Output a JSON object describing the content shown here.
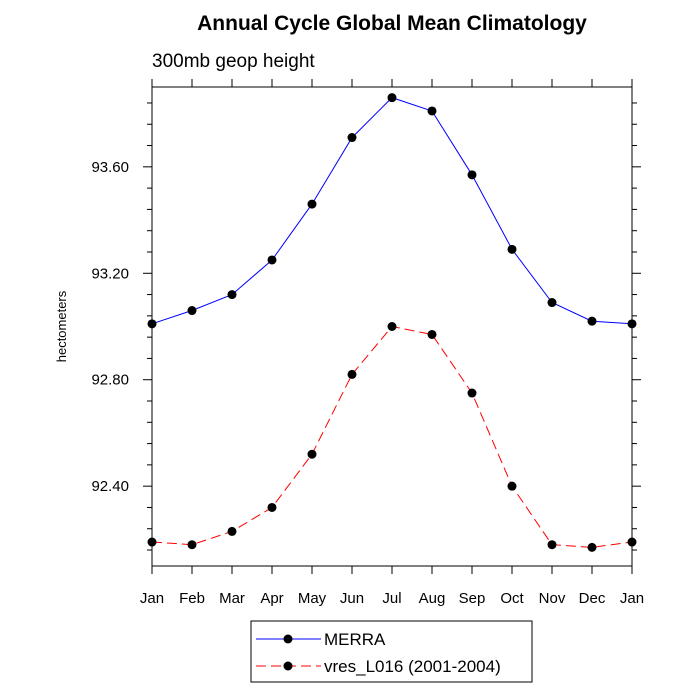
{
  "chart_data": {
    "type": "line",
    "title": "Annual Cycle Global Mean Climatology",
    "subtitle": "300mb geop height",
    "ylabel": "hectometers",
    "xlabel": "",
    "categories": [
      "Jan",
      "Feb",
      "Mar",
      "Apr",
      "May",
      "Jun",
      "Jul",
      "Aug",
      "Sep",
      "Oct",
      "Nov",
      "Dec",
      "Jan"
    ],
    "ylim": [
      92.1,
      93.9
    ],
    "yticks": [
      92.4,
      92.8,
      93.2,
      93.6
    ],
    "ytick_labels": [
      "92.40",
      "92.80",
      "93.20",
      "93.60"
    ],
    "series": [
      {
        "name": "MERRA",
        "color": "#0000ff",
        "dash": "solid",
        "values": [
          93.01,
          93.06,
          93.12,
          93.25,
          93.46,
          93.71,
          93.86,
          93.81,
          93.57,
          93.29,
          93.09,
          93.02,
          93.01
        ]
      },
      {
        "name": "vres_L016 (2001-2004)",
        "color": "#ff0000",
        "dash": "dashed",
        "values": [
          92.19,
          92.18,
          92.23,
          92.32,
          92.52,
          92.82,
          93.0,
          92.97,
          92.75,
          92.4,
          92.18,
          92.17,
          92.19
        ]
      }
    ],
    "legend_position": "bottom"
  }
}
